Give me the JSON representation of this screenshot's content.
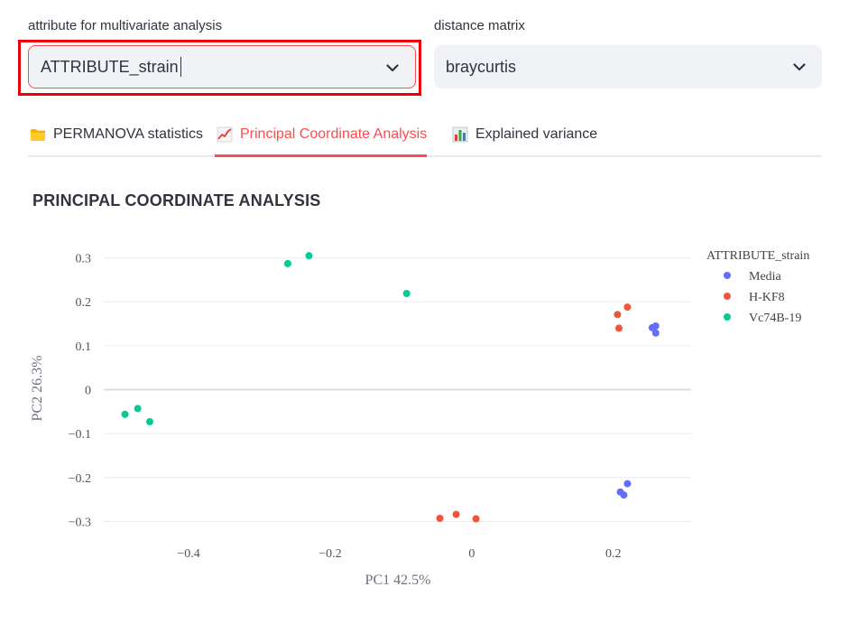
{
  "controls": {
    "attribute_label": "attribute for multivariate analysis",
    "attribute_value": "ATTRIBUTE_strain",
    "distance_label": "distance matrix",
    "distance_value": "braycurtis"
  },
  "tabs": [
    {
      "label": "PERMANOVA statistics",
      "icon": "folder-icon",
      "active": false
    },
    {
      "label": "Principal Coordinate Analysis",
      "icon": "chart-line-icon",
      "active": true
    },
    {
      "label": "Explained variance",
      "icon": "bar-chart-icon",
      "active": false
    }
  ],
  "section_title": "PRINCIPAL COORDINATE ANALYSIS",
  "colors": {
    "accent": "#ff4b4b",
    "focus_outline": "#e8000b",
    "media": "#636efa",
    "hkf8": "#ef553b",
    "vc74b19": "#00cc96"
  },
  "chart_data": {
    "type": "scatter",
    "title": "",
    "xlabel": "PC1 42.5%",
    "ylabel": "PC2 26.3%",
    "xlim": [
      -0.52,
      0.31
    ],
    "ylim": [
      -0.33,
      0.33
    ],
    "x_ticks": [
      -0.4,
      -0.2,
      0,
      0.2
    ],
    "x_tick_labels": [
      "−0.4",
      "−0.2",
      "0",
      "0.2"
    ],
    "y_ticks": [
      0.3,
      0.2,
      0.1,
      0,
      -0.1,
      -0.2,
      -0.3
    ],
    "y_tick_labels": [
      "0.3",
      "0.2",
      "0.1",
      "0",
      "−0.1",
      "−0.2",
      "−0.3"
    ],
    "grid": true,
    "legend_title": "ATTRIBUTE_strain",
    "legend_position": "right",
    "series": [
      {
        "name": "Media",
        "color": "#636efa",
        "points": [
          [
            0.255,
            0.141
          ],
          [
            0.26,
            0.145
          ],
          [
            0.26,
            0.129
          ],
          [
            0.22,
            -0.214
          ],
          [
            0.21,
            -0.233
          ],
          [
            0.215,
            -0.24
          ]
        ]
      },
      {
        "name": "H-KF8",
        "color": "#ef553b",
        "points": [
          [
            0.206,
            0.171
          ],
          [
            0.22,
            0.188
          ],
          [
            0.208,
            0.14
          ],
          [
            -0.045,
            -0.293
          ],
          [
            -0.022,
            -0.284
          ],
          [
            0.006,
            -0.294
          ]
        ]
      },
      {
        "name": "Vc74B-19",
        "color": "#00cc96",
        "points": [
          [
            -0.26,
            0.287
          ],
          [
            -0.23,
            0.305
          ],
          [
            -0.092,
            0.219
          ],
          [
            -0.49,
            -0.056
          ],
          [
            -0.472,
            -0.043
          ],
          [
            -0.455,
            -0.073
          ]
        ]
      }
    ]
  }
}
